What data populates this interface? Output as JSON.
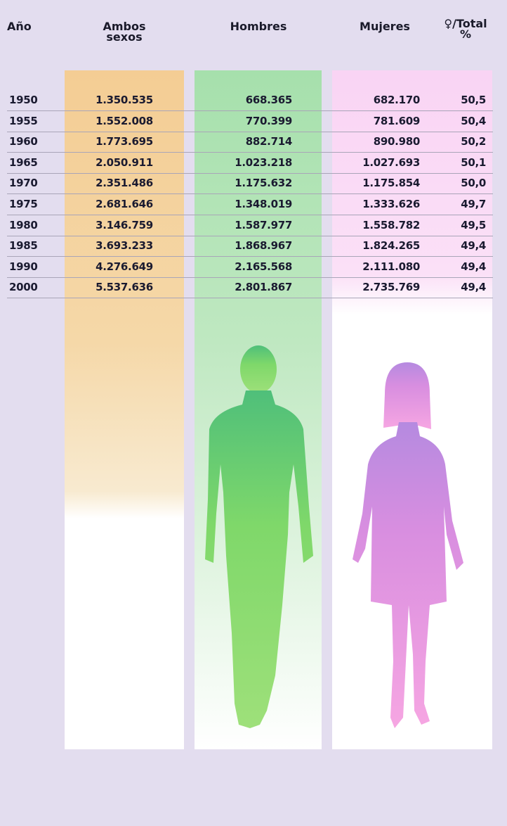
{
  "table": {
    "headers": [
      "Año",
      "Ambos\nsexos",
      "Hombres",
      "Mujeres",
      "♀/Total\n%"
    ],
    "rows": [
      [
        "1950",
        "1.350.535",
        "668.365",
        "682.170",
        "50,5"
      ],
      [
        "1955",
        "1.552.008",
        "770.399",
        "781.609",
        "50,4"
      ],
      [
        "1960",
        "1.773.695",
        "882.714",
        "890.980",
        "50,2"
      ],
      [
        "1965",
        "2.050.911",
        "1.023.218",
        "1.027.693",
        "50,1"
      ],
      [
        "1970",
        "2.351.486",
        "1.175.632",
        "1.175.854",
        "50,0"
      ],
      [
        "1975",
        "2.681.646",
        "1.348.019",
        "1.333.626",
        "49,7"
      ],
      [
        "1980",
        "3.146.759",
        "1.587.977",
        "1.558.782",
        "49,5"
      ],
      [
        "1985",
        "3.693.233",
        "1.868.967",
        "1.824.265",
        "49,4"
      ],
      [
        "1990",
        "4.276.649",
        "2.165.568",
        "2.111.080",
        "49,4"
      ],
      [
        "2000",
        "5.537.636",
        "2.801.867",
        "2.735.769",
        "49,4"
      ]
    ]
  }
}
